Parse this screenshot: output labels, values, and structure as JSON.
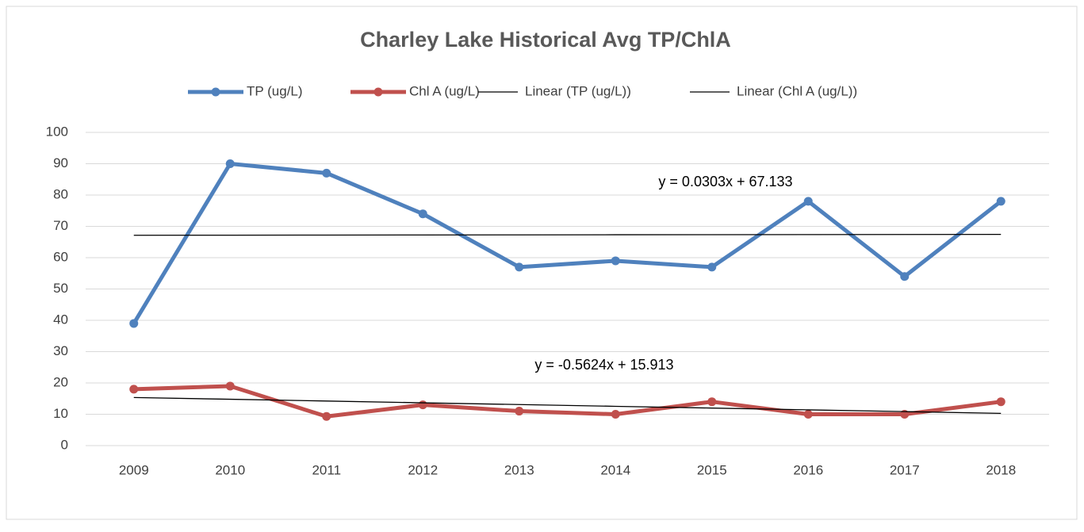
{
  "chart_data": {
    "type": "line",
    "title": "Charley Lake Historical Avg TP/ChlA",
    "categories": [
      "2009",
      "2010",
      "2011",
      "2012",
      "2013",
      "2014",
      "2015",
      "2016",
      "2017",
      "2018"
    ],
    "series": [
      {
        "name": "TP (ug/L)",
        "color": "#4f81bd",
        "values": [
          39,
          90,
          87,
          74,
          57,
          59,
          57,
          78,
          54,
          78
        ]
      },
      {
        "name": "Chl A (ug/L)",
        "color": "#c0504d",
        "values": [
          18,
          19,
          9.3,
          13,
          11,
          10,
          14,
          10,
          10,
          14
        ]
      },
      {
        "name": "Linear (TP (ug/L))",
        "color": "#000000",
        "values": [
          67.16,
          67.19,
          67.22,
          67.25,
          67.28,
          67.32,
          67.35,
          67.38,
          67.41,
          67.44
        ]
      },
      {
        "name": "Linear (Chl A (ug/L))",
        "color": "#000000",
        "values": [
          15.35,
          14.79,
          14.23,
          13.66,
          13.1,
          12.54,
          11.98,
          11.41,
          10.85,
          10.29
        ]
      }
    ],
    "annotations": [
      "y = 0.0303x + 67.133",
      "y = -0.5624x + 15.913"
    ],
    "ylim": [
      0,
      100
    ],
    "yticks": [
      0,
      10,
      20,
      30,
      40,
      50,
      60,
      70,
      80,
      90,
      100
    ],
    "grid": true,
    "legend": "top"
  }
}
